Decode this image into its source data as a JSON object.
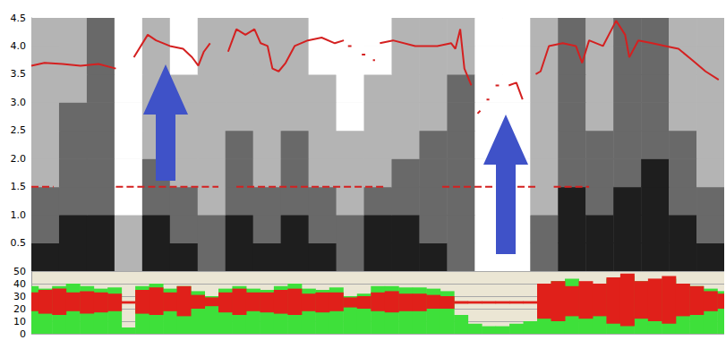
{
  "chart_data": [
    {
      "type": "line",
      "xlim": [
        0,
        100
      ],
      "ylim": [
        0,
        4.5
      ],
      "yticks": [
        0.5,
        {
          "value": 1,
          "label": "1.0"
        },
        1.5,
        {
          "value": 2,
          "label": "2.0"
        },
        2.5,
        {
          "value": 3,
          "label": "3.0"
        },
        3.5,
        {
          "value": 4,
          "label": "4.0"
        },
        4.5
      ],
      "grid": true,
      "tick_labels": "y",
      "series": [
        {
          "color": "#d42020",
          "line_style": "solid",
          "x": [
            0,
            1.9,
            4.5,
            7.1,
            9.7,
            12.2,
            13.5,
            14.8,
            16.8,
            18.0,
            20.0,
            21.9,
            23.2,
            24.1,
            24.9,
            25.8,
            27,
            28.4,
            29.6,
            30.9,
            32.2,
            33.1,
            34.1,
            34.8,
            35.7,
            36.7,
            38.0,
            39.9,
            41.9,
            43.8,
            45.1,
            45.4,
            45.7,
            46.2,
            46.9,
            47.7,
            48.2,
            48.8,
            49.3,
            49.6,
            50.0,
            50.3,
            52.2,
            55.4,
            58.6,
            60.6,
            61.2,
            61.9,
            62.5,
            63.5,
            64.0,
            64.4,
            64.8,
            65.2,
            65.7,
            66.1,
            66.5,
            67.0,
            67.5,
            68.2,
            68.9,
            70.0,
            70.9,
            72,
            72.8,
            73.5,
            74.7,
            76.7,
            78.6,
            79.5,
            80.5,
            82.5,
            84.4,
            85.7,
            86.3,
            87.6,
            89.6,
            91.5,
            93.4,
            95.4,
            97.3,
            99.2
          ],
          "values": [
            3.65,
            3.7,
            3.68,
            3.65,
            3.68,
            3.6,
            null,
            3.8,
            4.2,
            4.1,
            4.0,
            3.95,
            3.8,
            3.65,
            3.9,
            4.05,
            null,
            3.9,
            4.3,
            4.2,
            4.3,
            4.05,
            4.0,
            3.6,
            3.55,
            3.7,
            4.0,
            4.1,
            4.15,
            4.05,
            4.1,
            null,
            4.0,
            4.0,
            null,
            3.85,
            3.85,
            null,
            3.75,
            3.75,
            null,
            4.05,
            4.1,
            4.0,
            4.0,
            4.05,
            3.95,
            4.3,
            3.6,
            3.3,
            null,
            2.8,
            2.85,
            null,
            3.05,
            3.05,
            null,
            3.3,
            3.3,
            null,
            3.3,
            3.35,
            3.05,
            null,
            3.5,
            3.55,
            4.0,
            4.05,
            4.0,
            3.7,
            4.1,
            4.0,
            4.45,
            4.2,
            3.8,
            4.1,
            4.05,
            4.0,
            3.95,
            3.75,
            3.55,
            3.4
          ]
        },
        {
          "color": "#d42020",
          "line_style": "dashed",
          "x": [
            0,
            3.2,
            4,
            12.2,
            27.0,
            28,
            29.6,
            50.9,
            55,
            59.3,
            72.8,
            74,
            75.4,
            80.5
          ],
          "values": [
            1.5,
            1.5,
            null,
            1.5,
            1.5,
            null,
            1.5,
            1.5,
            null,
            1.5,
            1.5,
            null,
            1.5,
            1.5
          ]
        }
      ],
      "spectrogram": {
        "x": [
          0,
          4,
          8,
          12,
          16,
          20,
          24,
          28,
          32,
          36,
          40,
          44,
          48,
          52,
          56,
          60,
          64,
          68,
          72,
          76,
          80,
          84,
          88,
          92,
          96,
          100
        ],
        "y": [
          0,
          0.5,
          1,
          1.5,
          2,
          2.5,
          3,
          3.5,
          4,
          4.5
        ],
        "cells": [
          [
            3,
            3,
            3,
            1,
            3,
            3,
            2,
            3,
            3,
            3,
            3,
            2,
            3,
            3,
            3,
            2,
            0,
            0,
            2,
            3,
            3,
            3,
            3,
            3,
            3
          ],
          [
            2,
            3,
            3,
            1,
            3,
            2,
            2,
            3,
            2,
            3,
            2,
            2,
            3,
            3,
            2,
            2,
            0,
            0,
            2,
            3,
            3,
            3,
            3,
            3,
            2
          ],
          [
            2,
            2,
            2,
            0,
            2,
            2,
            1,
            2,
            2,
            2,
            2,
            1,
            2,
            2,
            2,
            2,
            0,
            0,
            1,
            3,
            2,
            3,
            3,
            2,
            2
          ],
          [
            1,
            2,
            2,
            0,
            2,
            1,
            1,
            2,
            1,
            2,
            1,
            1,
            1,
            2,
            2,
            2,
            0,
            0,
            1,
            2,
            2,
            2,
            3,
            2,
            1
          ],
          [
            1,
            2,
            2,
            0,
            1,
            1,
            1,
            2,
            1,
            2,
            1,
            1,
            1,
            1,
            2,
            2,
            0,
            0,
            1,
            2,
            2,
            2,
            2,
            2,
            1
          ],
          [
            1,
            2,
            2,
            0,
            1,
            1,
            1,
            1,
            1,
            1,
            1,
            0,
            1,
            1,
            1,
            2,
            0,
            0,
            1,
            2,
            1,
            2,
            2,
            1,
            1
          ],
          [
            1,
            1,
            2,
            0,
            1,
            1,
            1,
            1,
            1,
            1,
            1,
            0,
            1,
            1,
            1,
            2,
            0,
            0,
            1,
            2,
            1,
            2,
            2,
            1,
            1
          ],
          [
            1,
            1,
            2,
            0,
            1,
            0,
            1,
            1,
            1,
            1,
            0,
            0,
            0,
            1,
            1,
            1,
            0,
            0,
            1,
            2,
            1,
            2,
            2,
            1,
            1
          ],
          [
            1,
            1,
            2,
            0,
            1,
            0,
            1,
            1,
            1,
            1,
            0,
            0,
            0,
            1,
            1,
            1,
            0,
            0,
            1,
            2,
            1,
            2,
            2,
            1,
            1
          ]
        ]
      }
    },
    {
      "type": "area",
      "xlim": [
        0,
        100
      ],
      "ylim": [
        0,
        50
      ],
      "yticks": [
        0,
        10,
        20,
        30,
        40,
        50
      ],
      "grid": true,
      "tick_labels": "y",
      "x": [
        0,
        2,
        4,
        6,
        8,
        10,
        12,
        14,
        16,
        18,
        20,
        22,
        24,
        26,
        28,
        30,
        32,
        34,
        36,
        38,
        40,
        42,
        44,
        46,
        48,
        50,
        52,
        54,
        56,
        58,
        60,
        62,
        64,
        66,
        68,
        70,
        72,
        74,
        76,
        78,
        80,
        82,
        84,
        86,
        88,
        90,
        92,
        94,
        96,
        98,
        100
      ],
      "series": [
        {
          "type": "area",
          "color": "#3ee03a",
          "values": [
            38,
            36,
            38,
            40,
            38,
            36,
            37,
            5,
            38,
            40,
            36,
            38,
            34,
            30,
            36,
            38,
            36,
            35,
            38,
            40,
            36,
            35,
            37,
            30,
            32,
            38,
            38,
            37,
            37,
            36,
            34,
            15,
            8,
            6,
            6,
            8,
            10,
            40,
            42,
            44,
            40,
            38,
            44,
            46,
            42,
            40,
            44,
            40,
            38,
            36,
            34
          ]
        },
        {
          "type": "range",
          "color": "#e0201a",
          "low": [
            18,
            16,
            15,
            18,
            16,
            17,
            18,
            24,
            16,
            15,
            18,
            14,
            20,
            22,
            17,
            15,
            18,
            17,
            16,
            15,
            18,
            17,
            18,
            21,
            20,
            18,
            17,
            18,
            18,
            20,
            20,
            24,
            24,
            24,
            24,
            24,
            24,
            12,
            10,
            14,
            12,
            14,
            8,
            6,
            12,
            10,
            8,
            14,
            15,
            18,
            20
          ],
          "high": [
            33,
            35,
            36,
            33,
            34,
            33,
            32,
            26,
            35,
            37,
            33,
            38,
            31,
            29,
            33,
            36,
            33,
            33,
            35,
            36,
            32,
            33,
            33,
            29,
            30,
            33,
            34,
            32,
            32,
            31,
            30,
            26,
            26,
            26,
            26,
            26,
            26,
            40,
            42,
            38,
            42,
            40,
            45,
            48,
            42,
            44,
            46,
            40,
            38,
            34,
            32
          ]
        }
      ]
    }
  ]
}
